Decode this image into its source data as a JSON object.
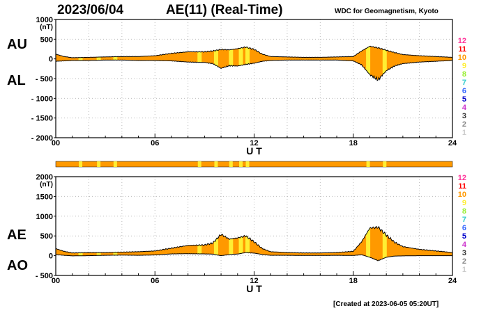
{
  "header": {
    "date": "2023/06/04",
    "title": "AE(11) (Real-Time)",
    "source": "WDC for Geomagnetism, Kyoto"
  },
  "footer": {
    "created": "[Created at 2023-06-05 05:20UT]"
  },
  "colors": {
    "fill_main": "#ff9900",
    "fill_light": "#ffee33",
    "frame": "#000000",
    "grid": "#bbbbbb"
  },
  "station_scale": [
    {
      "label": "12",
      "color": "#ff3399"
    },
    {
      "label": "11",
      "color": "#ff0000"
    },
    {
      "label": "10",
      "color": "#ff9900"
    },
    {
      "label": "9",
      "color": "#ffee33"
    },
    {
      "label": "8",
      "color": "#99ee33"
    },
    {
      "label": "7",
      "color": "#33cccc"
    },
    {
      "label": "6",
      "color": "#3366ff"
    },
    {
      "label": "5",
      "color": "#0000cc"
    },
    {
      "label": "4",
      "color": "#cc33cc"
    },
    {
      "label": "3",
      "color": "#333333"
    },
    {
      "label": "2",
      "color": "#888888"
    },
    {
      "label": "1",
      "color": "#cccccc"
    }
  ],
  "chart_data": [
    {
      "type": "area",
      "panel": "top",
      "xlabel": "U T",
      "xlim": [
        0,
        24
      ],
      "ylim": [
        -2000,
        1000
      ],
      "xticks": [
        "00",
        "06",
        "12",
        "18",
        "24"
      ],
      "yticks": [
        "1000",
        "500",
        "0",
        "- 500",
        "- 1000",
        "- 1500",
        "- 2000"
      ],
      "unit": "(nT)",
      "labels": {
        "upper": "AU",
        "lower": "AL"
      },
      "light_bands_hours": [
        1.5,
        2.6,
        3.6,
        8.7,
        9.7,
        10.6,
        11.2,
        11.6,
        18.9,
        19.9
      ],
      "series": [
        {
          "name": "AU",
          "x": [
            0,
            0.5,
            1,
            2,
            3,
            4,
            5,
            6,
            7,
            8,
            9,
            9.5,
            10,
            10.5,
            11,
            11.5,
            12,
            12.5,
            13,
            14,
            15,
            16,
            17,
            18,
            18.5,
            19,
            19.5,
            20,
            20.5,
            21,
            22,
            23,
            24
          ],
          "y": [
            120,
            60,
            30,
            40,
            50,
            60,
            60,
            80,
            140,
            180,
            180,
            200,
            240,
            230,
            260,
            300,
            240,
            120,
            60,
            50,
            40,
            40,
            50,
            60,
            200,
            320,
            280,
            220,
            160,
            110,
            80,
            60,
            40
          ]
        },
        {
          "name": "AL",
          "x": [
            0,
            0.5,
            1,
            2,
            3,
            4,
            5,
            6,
            7,
            8,
            9,
            9.5,
            10,
            10.5,
            11,
            11.5,
            12,
            12.5,
            13,
            14,
            15,
            16,
            17,
            18,
            18.5,
            19,
            19.5,
            20,
            20.5,
            21,
            22,
            23,
            24
          ],
          "y": [
            -60,
            -50,
            -40,
            -40,
            -30,
            -30,
            -40,
            -40,
            -50,
            -80,
            -90,
            -120,
            -240,
            -170,
            -180,
            -140,
            -110,
            -60,
            -40,
            -30,
            -30,
            -30,
            -30,
            -50,
            -150,
            -400,
            -530,
            -300,
            -180,
            -120,
            -80,
            -60,
            -40
          ]
        }
      ]
    },
    {
      "type": "area",
      "panel": "bottom",
      "xlabel": "U T",
      "xlim": [
        0,
        24
      ],
      "ylim": [
        -500,
        2000
      ],
      "xticks": [
        "00",
        "06",
        "12",
        "18",
        "24"
      ],
      "yticks": [
        "2000",
        "1500",
        "1000",
        "500",
        "0",
        "- 500"
      ],
      "unit": "(nT)",
      "labels": {
        "upper": "AE",
        "lower": "AO"
      },
      "light_bands_hours": [
        1.5,
        2.6,
        3.6,
        8.7,
        9.7,
        10.6,
        11.2,
        11.6,
        18.9,
        19.9
      ],
      "series": [
        {
          "name": "AE",
          "x": [
            0,
            0.5,
            1,
            2,
            3,
            4,
            5,
            6,
            7,
            8,
            9,
            9.5,
            10,
            10.5,
            11,
            11.5,
            12,
            12.5,
            13,
            14,
            15,
            16,
            17,
            18,
            18.5,
            19,
            19.5,
            20,
            20.5,
            21,
            22,
            23,
            24
          ],
          "y": [
            180,
            110,
            70,
            80,
            80,
            90,
            100,
            120,
            190,
            260,
            270,
            320,
            540,
            420,
            450,
            500,
            350,
            180,
            100,
            80,
            70,
            70,
            80,
            110,
            350,
            700,
            720,
            520,
            340,
            230,
            160,
            120,
            80
          ]
        },
        {
          "name": "AO",
          "x": [
            0,
            0.5,
            1,
            2,
            3,
            4,
            5,
            6,
            7,
            8,
            9,
            9.5,
            10,
            10.5,
            11,
            11.5,
            12,
            12.5,
            13,
            14,
            15,
            16,
            17,
            18,
            18.5,
            19,
            19.5,
            20,
            20.5,
            21,
            22,
            23,
            24
          ],
          "y": [
            30,
            10,
            -5,
            0,
            10,
            15,
            10,
            20,
            45,
            50,
            45,
            40,
            0,
            30,
            40,
            80,
            65,
            30,
            10,
            10,
            5,
            5,
            10,
            5,
            25,
            -40,
            -125,
            -40,
            -10,
            -5,
            0,
            0,
            0
          ]
        }
      ]
    }
  ]
}
